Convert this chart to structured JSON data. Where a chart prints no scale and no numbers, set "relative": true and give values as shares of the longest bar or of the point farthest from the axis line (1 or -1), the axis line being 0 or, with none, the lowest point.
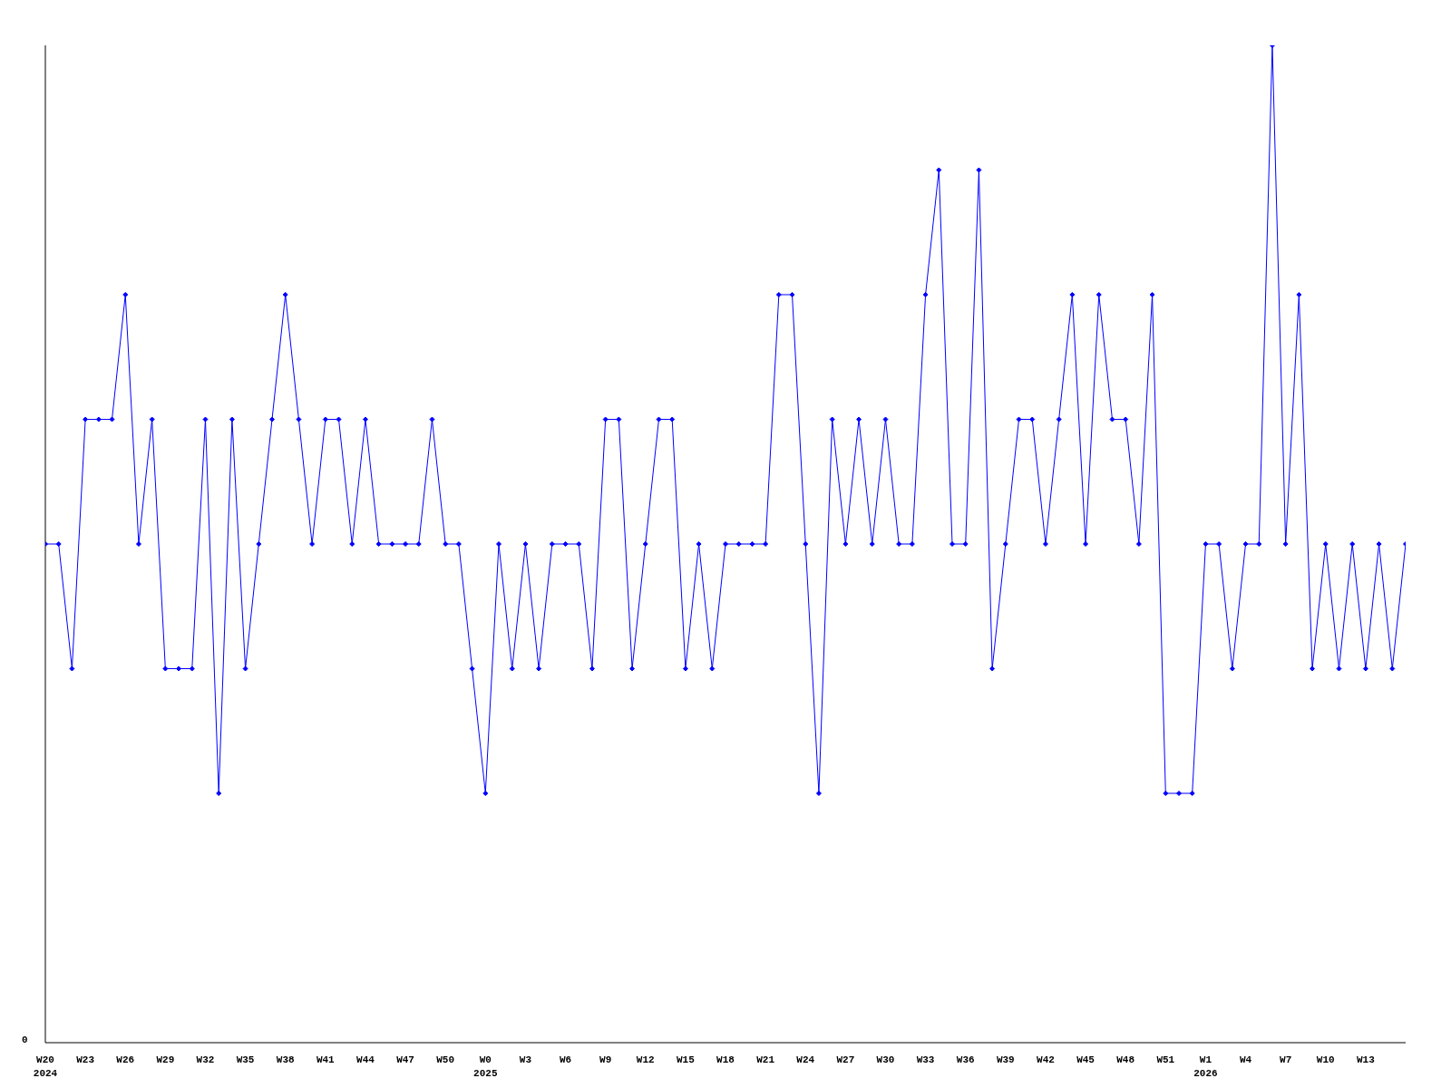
{
  "chart_data": {
    "type": "line",
    "relative": true,
    "marker": "diamond",
    "line_style": "solid",
    "grid": false,
    "legend": false,
    "annotations": [
      "0"
    ],
    "categories": [
      "W20\n2024",
      null,
      null,
      "W23",
      null,
      null,
      "W26",
      null,
      null,
      "W29",
      null,
      null,
      "W32",
      null,
      null,
      "W35",
      null,
      null,
      "W38",
      null,
      null,
      "W41",
      null,
      null,
      "W44",
      null,
      null,
      "W47",
      null,
      null,
      "W50",
      null,
      null,
      "W0\n2025",
      null,
      null,
      "W3",
      null,
      null,
      "W6",
      null,
      null,
      "W9",
      null,
      null,
      "W12",
      null,
      null,
      "W15",
      null,
      null,
      "W18",
      null,
      null,
      "W21",
      null,
      null,
      "W24",
      null,
      null,
      "W27",
      null,
      null,
      "W30",
      null,
      null,
      "W33",
      null,
      null,
      "W36",
      null,
      null,
      "W39",
      null,
      null,
      "W42",
      null,
      null,
      "W45",
      null,
      null,
      "W48",
      null,
      null,
      "W51",
      null,
      null,
      "W1\n2026",
      null,
      null,
      "W4",
      null,
      null,
      "W7",
      null,
      null,
      "W10",
      null,
      null,
      "W13",
      null,
      null,
      null
    ],
    "series": [
      {
        "color": "#0000ff",
        "values": [
          0.5,
          0.5,
          0.375,
          0.625,
          0.625,
          0.625,
          0.75,
          0.5,
          0.625,
          0.375,
          0.375,
          0.375,
          0.625,
          0.25,
          0.625,
          0.375,
          0.5,
          0.625,
          0.75,
          0.625,
          0.5,
          0.625,
          0.625,
          0.5,
          0.625,
          0.5,
          0.5,
          0.5,
          0.5,
          0.625,
          0.5,
          0.5,
          0.375,
          0.25,
          0.5,
          0.375,
          0.5,
          0.375,
          0.5,
          0.5,
          0.5,
          0.375,
          0.625,
          0.625,
          0.375,
          0.5,
          0.625,
          0.625,
          0.375,
          0.5,
          0.375,
          0.5,
          0.5,
          0.5,
          0.5,
          0.75,
          0.75,
          0.5,
          0.25,
          0.625,
          0.5,
          0.625,
          0.5,
          0.625,
          0.5,
          0.5,
          0.75,
          0.875,
          0.5,
          0.5,
          0.875,
          0.375,
          0.5,
          0.625,
          0.625,
          0.5,
          0.625,
          0.75,
          0.5,
          0.75,
          0.625,
          0.625,
          0.5,
          0.75,
          0.25,
          0.25,
          0.25,
          0.5,
          0.5,
          0.375,
          0.5,
          0.5,
          1,
          0.5,
          0.75,
          0.375,
          0.5,
          0.375,
          0.5,
          0.375,
          0.5,
          0.375,
          0.5
        ]
      }
    ]
  }
}
